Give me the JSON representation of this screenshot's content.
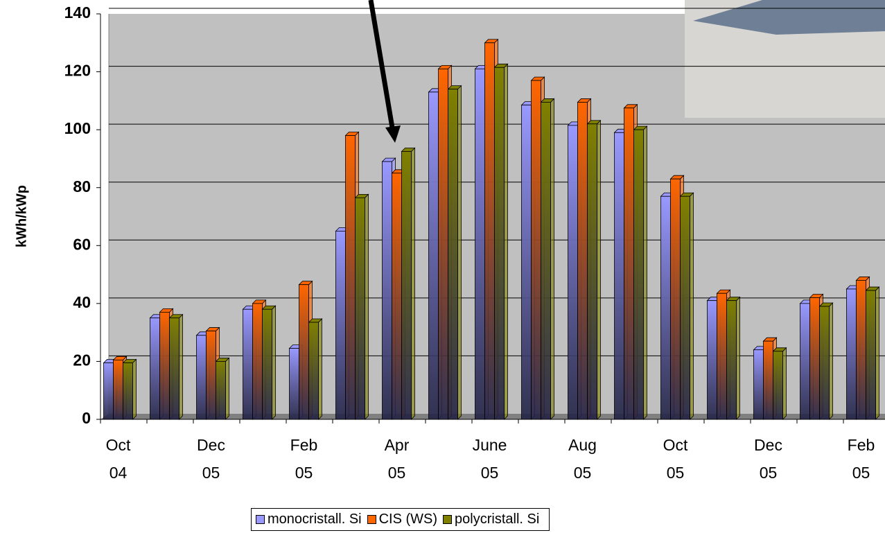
{
  "chart_data": {
    "type": "bar",
    "y_label": "kWh/kWp",
    "categories": [
      "Oct\n04",
      null,
      "Dec\n05",
      null,
      "Feb\n05",
      null,
      "Apr\n05",
      null,
      "June\n05",
      null,
      "Aug\n05",
      null,
      "Oct\n05",
      null,
      "Dec\n05",
      null,
      "Feb\n05"
    ],
    "series": [
      {
        "name": "monocristall. Si",
        "color": "#9999ff",
        "values": [
          19.5,
          35,
          29,
          38,
          24.5,
          65,
          89,
          113,
          121,
          108.5,
          101.5,
          99,
          77,
          41,
          24,
          40,
          45
        ]
      },
      {
        "name": "CIS (WS)",
        "color": "#ff6600",
        "values": [
          20.5,
          37,
          30.5,
          40,
          46.5,
          98,
          85,
          121,
          130,
          117,
          109.5,
          107.5,
          83,
          43.5,
          27,
          42,
          48
        ]
      },
      {
        "name": "polycristall. Si",
        "color": "#808000",
        "values": [
          19.5,
          35,
          20,
          38,
          33.5,
          76.5,
          92.5,
          114,
          121.5,
          109.5,
          102,
          100,
          77,
          41,
          23.5,
          39,
          44.5
        ]
      }
    ],
    "ylim": [
      0,
      140
    ],
    "yticks": [
      0,
      20,
      40,
      60,
      80,
      100,
      120,
      140
    ],
    "grid": true
  }
}
